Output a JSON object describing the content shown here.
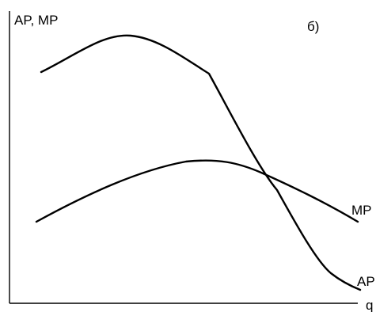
{
  "figure": {
    "y_axis_label": "AP, MP",
    "x_axis_label": "q",
    "panel_label": "б)"
  },
  "curves": {
    "mp_label": "MP",
    "ap_label": "AP"
  },
  "colors": {
    "background": "#ffffff",
    "ink": "#000000"
  }
}
